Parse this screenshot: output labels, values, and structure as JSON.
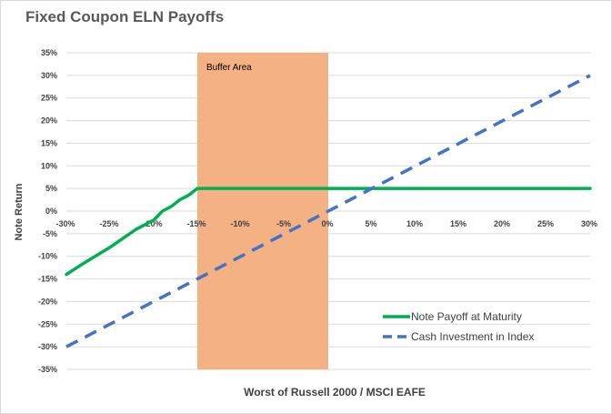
{
  "chart_data": {
    "type": "line",
    "title": "Fixed Coupon ELN Payoffs",
    "xlabel": "Worst of Russell 2000 / MSCI EAFE",
    "ylabel": "Note Return",
    "xlim": [
      -30,
      30
    ],
    "ylim": [
      -35,
      35
    ],
    "x_ticks": [
      -30,
      -25,
      -20,
      -15,
      -10,
      -5,
      0,
      5,
      10,
      15,
      20,
      25,
      30
    ],
    "x_tick_labels": [
      "-30%",
      "-25%",
      "-20%",
      "-15%",
      "-10%",
      "-5%",
      "0%",
      "5%",
      "10%",
      "15%",
      "20%",
      "25%",
      "30%"
    ],
    "y_ticks": [
      35,
      30,
      25,
      20,
      15,
      10,
      5,
      0,
      -5,
      -10,
      -15,
      -20,
      -25,
      -30,
      -35
    ],
    "y_tick_labels": [
      "35%",
      "30%",
      "25%",
      "20%",
      "15%",
      "10%",
      "5%",
      "0%",
      "-5%",
      "-10%",
      "-15%",
      "-20%",
      "-25%",
      "-30%",
      "-35%"
    ],
    "grid": true,
    "legend_position": "bottom-right",
    "shaded_region": {
      "x": [
        -15,
        0
      ],
      "label": "Buffer Area",
      "color": "#f4b183"
    },
    "series": [
      {
        "name": "Note Payoff at Maturity",
        "color": "#00b050",
        "style": "solid",
        "x": [
          -30,
          -28,
          -25,
          -22,
          -20,
          -19,
          -18,
          -17,
          -16,
          -15,
          30
        ],
        "y": [
          -14,
          -11.5,
          -8,
          -4,
          -2,
          0,
          1,
          2.5,
          3.5,
          5,
          5
        ]
      },
      {
        "name": "Cash Investment in Index",
        "color": "#4472c4",
        "style": "dashed",
        "x": [
          -30,
          30
        ],
        "y": [
          -30,
          30
        ]
      }
    ]
  }
}
